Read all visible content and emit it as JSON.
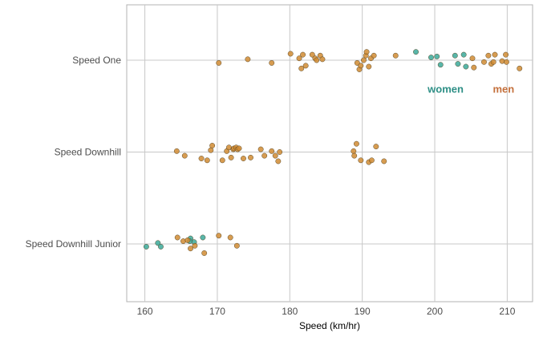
{
  "chart_data": {
    "type": "scatter",
    "title": "",
    "xlabel": "Speed (km/hr)",
    "ylabel": "",
    "xlim": [
      157.5,
      213.5
    ],
    "x_ticks": [
      160,
      170,
      180,
      190,
      200,
      210
    ],
    "categories": [
      "Speed One",
      "Speed Downhill",
      "Speed Downhill Junior"
    ],
    "grid": true,
    "legend": "none",
    "colors": {
      "women": "#3ba99a",
      "men": "#d08b32",
      "women_label": "#2e8f86",
      "men_label": "#c4703c"
    },
    "annotations": [
      {
        "text": "women",
        "x": 201.5,
        "category": "Speed One",
        "offset": -0.32,
        "series": "women"
      },
      {
        "text": "men",
        "x": 209.5,
        "category": "Speed One",
        "offset": -0.32,
        "series": "men"
      }
    ],
    "series": [
      {
        "name": "women",
        "points": [
          {
            "category": "Speed One",
            "x": 197.4,
            "jitter": 0.09
          },
          {
            "category": "Speed One",
            "x": 199.5,
            "jitter": 0.03
          },
          {
            "category": "Speed One",
            "x": 200.3,
            "jitter": 0.04
          },
          {
            "category": "Speed One",
            "x": 200.8,
            "jitter": -0.05
          },
          {
            "category": "Speed One",
            "x": 202.8,
            "jitter": 0.05
          },
          {
            "category": "Speed One",
            "x": 203.2,
            "jitter": -0.04
          },
          {
            "category": "Speed One",
            "x": 204.0,
            "jitter": 0.06
          },
          {
            "category": "Speed One",
            "x": 204.3,
            "jitter": -0.07
          },
          {
            "category": "Speed Downhill Junior",
            "x": 160.2,
            "jitter": -0.03
          },
          {
            "category": "Speed Downhill Junior",
            "x": 161.8,
            "jitter": 0.01
          },
          {
            "category": "Speed Downhill Junior",
            "x": 162.2,
            "jitter": -0.03
          },
          {
            "category": "Speed Downhill Junior",
            "x": 166.3,
            "jitter": 0.06
          },
          {
            "category": "Speed Downhill Junior",
            "x": 166.8,
            "jitter": 0.02
          },
          {
            "category": "Speed Downhill Junior",
            "x": 168.0,
            "jitter": 0.07
          },
          {
            "category": "Speed Downhill Junior",
            "x": 166.2,
            "jitter": 0.03
          }
        ]
      },
      {
        "name": "men",
        "points": [
          {
            "category": "Speed One",
            "x": 170.2,
            "jitter": -0.03
          },
          {
            "category": "Speed One",
            "x": 174.2,
            "jitter": 0.01
          },
          {
            "category": "Speed One",
            "x": 177.5,
            "jitter": -0.03
          },
          {
            "category": "Speed One",
            "x": 180.1,
            "jitter": 0.07
          },
          {
            "category": "Speed One",
            "x": 181.3,
            "jitter": 0.02
          },
          {
            "category": "Speed One",
            "x": 181.6,
            "jitter": -0.09
          },
          {
            "category": "Speed One",
            "x": 181.8,
            "jitter": 0.06
          },
          {
            "category": "Speed One",
            "x": 182.2,
            "jitter": -0.06
          },
          {
            "category": "Speed One",
            "x": 183.1,
            "jitter": 0.06
          },
          {
            "category": "Speed One",
            "x": 183.5,
            "jitter": 0.02
          },
          {
            "category": "Speed One",
            "x": 183.7,
            "jitter": 0.0
          },
          {
            "category": "Speed One",
            "x": 184.2,
            "jitter": 0.05
          },
          {
            "category": "Speed One",
            "x": 184.5,
            "jitter": 0.01
          },
          {
            "category": "Speed One",
            "x": 189.3,
            "jitter": -0.03
          },
          {
            "category": "Speed One",
            "x": 189.6,
            "jitter": -0.1
          },
          {
            "category": "Speed One",
            "x": 189.8,
            "jitter": -0.06
          },
          {
            "category": "Speed One",
            "x": 190.2,
            "jitter": 0.0
          },
          {
            "category": "Speed One",
            "x": 190.5,
            "jitter": 0.05
          },
          {
            "category": "Speed One",
            "x": 190.6,
            "jitter": 0.09
          },
          {
            "category": "Speed One",
            "x": 190.9,
            "jitter": -0.07
          },
          {
            "category": "Speed One",
            "x": 191.2,
            "jitter": 0.02
          },
          {
            "category": "Speed One",
            "x": 191.6,
            "jitter": 0.05
          },
          {
            "category": "Speed One",
            "x": 194.6,
            "jitter": 0.05
          },
          {
            "category": "Speed One",
            "x": 205.2,
            "jitter": 0.02
          },
          {
            "category": "Speed One",
            "x": 205.4,
            "jitter": -0.08
          },
          {
            "category": "Speed One",
            "x": 206.8,
            "jitter": -0.02
          },
          {
            "category": "Speed One",
            "x": 207.4,
            "jitter": 0.05
          },
          {
            "category": "Speed One",
            "x": 207.8,
            "jitter": -0.04
          },
          {
            "category": "Speed One",
            "x": 208.1,
            "jitter": -0.02
          },
          {
            "category": "Speed One",
            "x": 208.3,
            "jitter": 0.06
          },
          {
            "category": "Speed One",
            "x": 209.3,
            "jitter": -0.01
          },
          {
            "category": "Speed One",
            "x": 209.8,
            "jitter": 0.06
          },
          {
            "category": "Speed One",
            "x": 209.9,
            "jitter": -0.02
          },
          {
            "category": "Speed One",
            "x": 211.7,
            "jitter": -0.09
          },
          {
            "category": "Speed Downhill",
            "x": 164.4,
            "jitter": 0.01
          },
          {
            "category": "Speed Downhill",
            "x": 165.5,
            "jitter": -0.04
          },
          {
            "category": "Speed Downhill",
            "x": 167.8,
            "jitter": -0.07
          },
          {
            "category": "Speed Downhill",
            "x": 168.6,
            "jitter": -0.09
          },
          {
            "category": "Speed Downhill",
            "x": 169.1,
            "jitter": 0.02
          },
          {
            "category": "Speed Downhill",
            "x": 169.3,
            "jitter": 0.07
          },
          {
            "category": "Speed Downhill",
            "x": 170.7,
            "jitter": -0.09
          },
          {
            "category": "Speed Downhill",
            "x": 171.3,
            "jitter": 0.01
          },
          {
            "category": "Speed Downhill",
            "x": 171.6,
            "jitter": 0.05
          },
          {
            "category": "Speed Downhill",
            "x": 171.9,
            "jitter": -0.06
          },
          {
            "category": "Speed Downhill",
            "x": 172.2,
            "jitter": 0.03
          },
          {
            "category": "Speed Downhill",
            "x": 172.3,
            "jitter": 0.04
          },
          {
            "category": "Speed Downhill",
            "x": 172.6,
            "jitter": 0.05
          },
          {
            "category": "Speed Downhill",
            "x": 172.8,
            "jitter": 0.03
          },
          {
            "category": "Speed Downhill",
            "x": 173.0,
            "jitter": 0.04
          },
          {
            "category": "Speed Downhill",
            "x": 173.6,
            "jitter": -0.07
          },
          {
            "category": "Speed Downhill",
            "x": 174.6,
            "jitter": -0.06
          },
          {
            "category": "Speed Downhill",
            "x": 176.0,
            "jitter": 0.03
          },
          {
            "category": "Speed Downhill",
            "x": 176.5,
            "jitter": -0.04
          },
          {
            "category": "Speed Downhill",
            "x": 177.5,
            "jitter": 0.01
          },
          {
            "category": "Speed Downhill",
            "x": 178.0,
            "jitter": -0.04
          },
          {
            "category": "Speed Downhill",
            "x": 178.4,
            "jitter": -0.1
          },
          {
            "category": "Speed Downhill",
            "x": 178.6,
            "jitter": 0.0
          },
          {
            "category": "Speed Downhill",
            "x": 188.8,
            "jitter": 0.01
          },
          {
            "category": "Speed Downhill",
            "x": 188.9,
            "jitter": -0.04
          },
          {
            "category": "Speed Downhill",
            "x": 189.2,
            "jitter": 0.09
          },
          {
            "category": "Speed Downhill",
            "x": 189.8,
            "jitter": -0.09
          },
          {
            "category": "Speed Downhill",
            "x": 190.9,
            "jitter": -0.11
          },
          {
            "category": "Speed Downhill",
            "x": 191.3,
            "jitter": -0.09
          },
          {
            "category": "Speed Downhill",
            "x": 191.9,
            "jitter": 0.06
          },
          {
            "category": "Speed Downhill",
            "x": 193.0,
            "jitter": -0.1
          },
          {
            "category": "Speed Downhill Junior",
            "x": 164.5,
            "jitter": 0.07
          },
          {
            "category": "Speed Downhill Junior",
            "x": 165.3,
            "jitter": 0.03
          },
          {
            "category": "Speed Downhill Junior",
            "x": 165.9,
            "jitter": 0.04
          },
          {
            "category": "Speed Downhill Junior",
            "x": 166.3,
            "jitter": -0.05
          },
          {
            "category": "Speed Downhill Junior",
            "x": 166.9,
            "jitter": -0.02
          },
          {
            "category": "Speed Downhill Junior",
            "x": 168.2,
            "jitter": -0.1
          },
          {
            "category": "Speed Downhill Junior",
            "x": 170.2,
            "jitter": 0.09
          },
          {
            "category": "Speed Downhill Junior",
            "x": 171.8,
            "jitter": 0.07
          },
          {
            "category": "Speed Downhill Junior",
            "x": 172.7,
            "jitter": -0.02
          }
        ]
      }
    ]
  }
}
